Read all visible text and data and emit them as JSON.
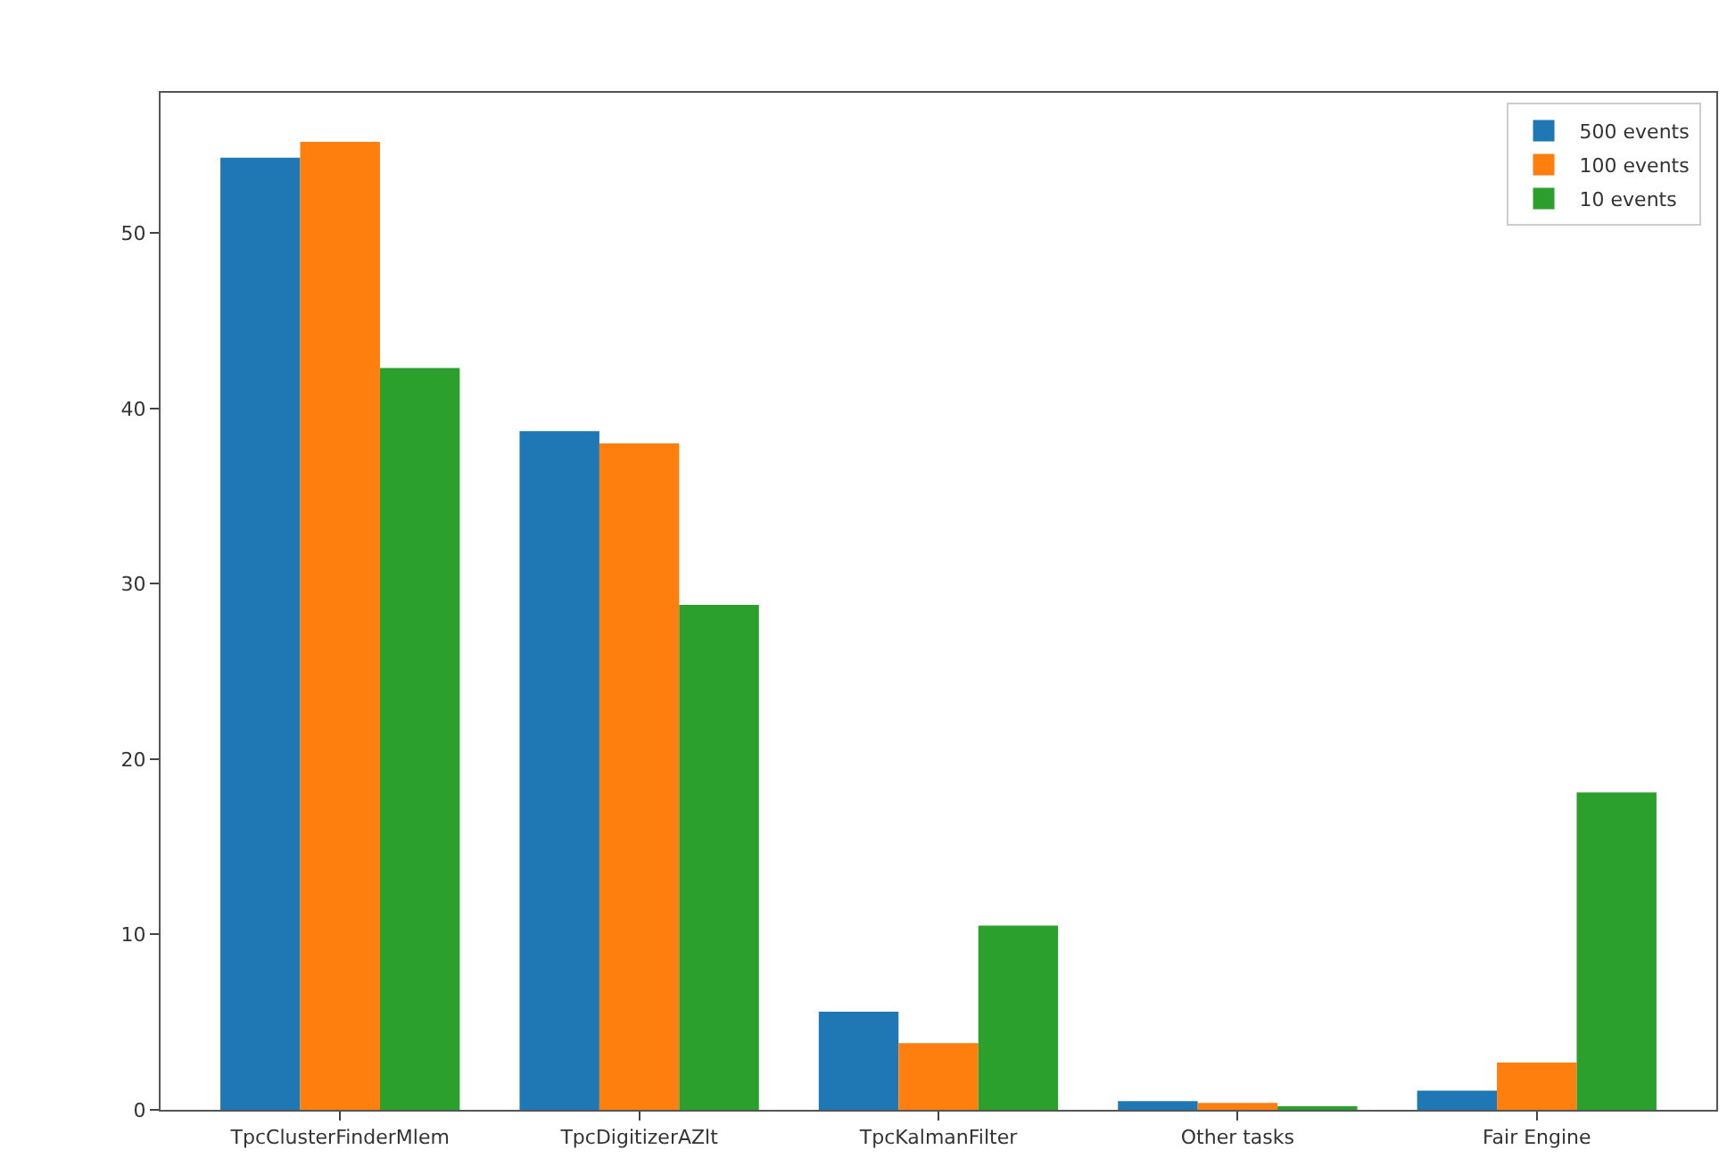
{
  "chart_data": {
    "type": "bar",
    "categories": [
      "TpcClusterFinderMlem",
      "TpcDigitizerAZlt",
      "TpcKalmanFilter",
      "Other tasks",
      "Fair Engine"
    ],
    "series": [
      {
        "name": "500 events",
        "color": "#1f77b4",
        "values": [
          54.3,
          38.7,
          5.6,
          0.5,
          1.1
        ]
      },
      {
        "name": "100 events",
        "color": "#ff7f0e",
        "values": [
          55.2,
          38.0,
          3.8,
          0.4,
          2.7
        ]
      },
      {
        "name": "10 events",
        "color": "#2ca02c",
        "values": [
          42.3,
          28.8,
          10.5,
          0.2,
          18.1
        ]
      }
    ],
    "ylim": [
      0,
      58
    ],
    "yticks": [
      0,
      10,
      20,
      30,
      40,
      50
    ],
    "legend": "top right"
  }
}
